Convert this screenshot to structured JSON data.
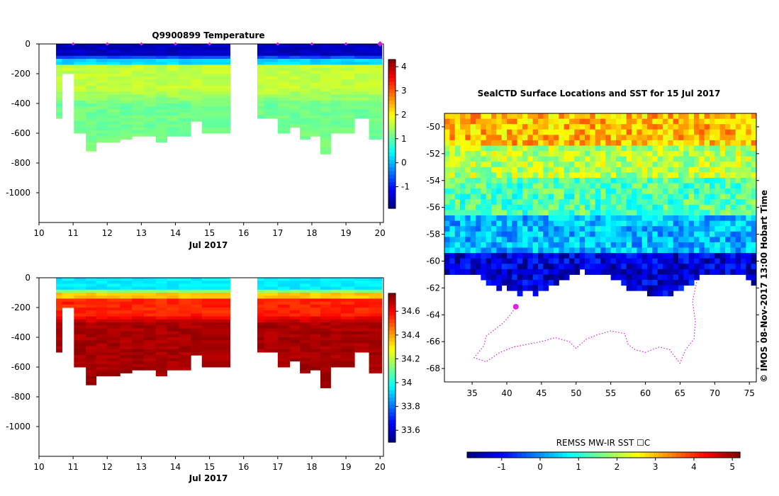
{
  "chart_data": [
    {
      "type": "heatmap",
      "title": "Q9900899  Temperature",
      "xlabel": "Jul 2017",
      "ylabel": "",
      "xlim": [
        10,
        20.1
      ],
      "ylim": [
        -1200,
        0
      ],
      "x_ticks": [
        "10",
        "11",
        "12",
        "13",
        "14",
        "15",
        "16",
        "17",
        "18",
        "19",
        "20"
      ],
      "y_ticks": [
        "0",
        "-200",
        "-400",
        "-600",
        "-800",
        "-1000"
      ],
      "colorbar": {
        "min": -1.9,
        "max": 4.3,
        "ticks": [
          "-1",
          "0",
          "1",
          "2",
          "3",
          "4"
        ]
      },
      "profile_markers_x": [
        11,
        12,
        13,
        14,
        15,
        17,
        18,
        19,
        20
      ],
      "layers": [
        {
          "top": 0,
          "bottom": -100,
          "value": -1.5
        },
        {
          "top": -100,
          "bottom": -140,
          "value": 0.2
        },
        {
          "top": -140,
          "bottom": -400,
          "value": 1.6
        },
        {
          "top": -400,
          "bottom": -750,
          "value": 1.1
        }
      ],
      "profiles": [
        {
          "x": 10.5,
          "max_depth": 500
        },
        {
          "x": 10.85,
          "max_depth": 200
        },
        {
          "x": 11.2,
          "max_depth": 600
        },
        {
          "x": 11.55,
          "max_depth": 720
        },
        {
          "x": 11.8,
          "max_depth": 650
        },
        {
          "x": 12.2,
          "max_depth": 650
        },
        {
          "x": 12.55,
          "max_depth": 630
        },
        {
          "x": 12.9,
          "max_depth": 620
        },
        {
          "x": 13.25,
          "max_depth": 620
        },
        {
          "x": 13.6,
          "max_depth": 650
        },
        {
          "x": 13.9,
          "max_depth": 620
        },
        {
          "x": 14.3,
          "max_depth": 620
        },
        {
          "x": 14.6,
          "max_depth": 510
        },
        {
          "x": 14.95,
          "max_depth": 600
        },
        {
          "x": 16.4,
          "max_depth": 500
        },
        {
          "x": 16.8,
          "max_depth": 500
        },
        {
          "x": 17.2,
          "max_depth": 590
        },
        {
          "x": 17.5,
          "max_depth": 550
        },
        {
          "x": 17.8,
          "max_depth": 640
        },
        {
          "x": 18.1,
          "max_depth": 620
        },
        {
          "x": 18.4,
          "max_depth": 740
        },
        {
          "x": 18.7,
          "max_depth": 590
        },
        {
          "x": 19.0,
          "max_depth": 600
        },
        {
          "x": 19.5,
          "max_depth": 500
        },
        {
          "x": 19.85,
          "max_depth": 630
        }
      ],
      "gap": [
        15.6,
        16.4
      ]
    },
    {
      "type": "heatmap",
      "title": "",
      "xlabel": "Jul 2017",
      "ylabel": "",
      "xlim": [
        10,
        20.1
      ],
      "ylim": [
        -1200,
        0
      ],
      "x_ticks": [
        "10",
        "11",
        "12",
        "13",
        "14",
        "15",
        "16",
        "17",
        "18",
        "19",
        "20"
      ],
      "y_ticks": [
        "0",
        "-200",
        "-400",
        "-600",
        "-800",
        "-1000"
      ],
      "colorbar": {
        "min": 33.5,
        "max": 34.75,
        "ticks": [
          "33.6",
          "33.8",
          "34",
          "34.2",
          "34.4",
          "34.6"
        ]
      },
      "layers": [
        {
          "top": 0,
          "bottom": -100,
          "value": 33.95
        },
        {
          "top": -100,
          "bottom": -140,
          "value": 34.35
        },
        {
          "top": -140,
          "bottom": -300,
          "value": 34.55
        },
        {
          "top": -300,
          "bottom": -750,
          "value": 34.7
        }
      ],
      "gap": [
        15.6,
        16.4
      ]
    },
    {
      "type": "heatmap",
      "title": "SealCTD Surface Locations and SST for 15 Jul 2017",
      "xlabel": "",
      "ylabel": "",
      "xlim": [
        31,
        76
      ],
      "ylim": [
        -69,
        -49
      ],
      "x_ticks": [
        "35",
        "40",
        "45",
        "50",
        "55",
        "60",
        "65",
        "70",
        "75"
      ],
      "y_ticks": [
        "-50",
        "-52",
        "-54",
        "-56",
        "-58",
        "-60",
        "-62",
        "-64",
        "-66",
        "-68"
      ],
      "colorbar": {
        "label": "REMSS MW-IR SST ☐C",
        "min": -1.9,
        "max": 5.2,
        "ticks": [
          "-1",
          "0",
          "1",
          "2",
          "3",
          "4",
          "5"
        ]
      },
      "sst_bands": [
        {
          "lat_top": -49,
          "lat_bottom": -51,
          "value": 3.0
        },
        {
          "lat_top": -51,
          "lat_bottom": -53.5,
          "value": 2.0
        },
        {
          "lat_top": -53.5,
          "lat_bottom": -56.5,
          "value": 1.3
        },
        {
          "lat_top": -56.5,
          "lat_bottom": -59,
          "value": 0.3
        },
        {
          "lat_top": -59,
          "lat_bottom": -62,
          "value": -1.3
        }
      ],
      "seal_track": [
        [
          41.2,
          -63.5
        ],
        [
          40.5,
          -64
        ],
        [
          39.5,
          -64.6
        ],
        [
          38.5,
          -65
        ],
        [
          37,
          -65.6
        ],
        [
          36.7,
          -66.3
        ],
        [
          35.3,
          -67.2
        ],
        [
          37,
          -67.5
        ],
        [
          39,
          -66.8
        ],
        [
          41,
          -66.4
        ],
        [
          43,
          -66.2
        ],
        [
          45,
          -66
        ],
        [
          47,
          -65.7
        ],
        [
          49,
          -66
        ],
        [
          50,
          -66.5
        ],
        [
          51.5,
          -65.8
        ],
        [
          53,
          -65.5
        ],
        [
          55,
          -65.2
        ],
        [
          57,
          -65.4
        ],
        [
          57.5,
          -66.2
        ],
        [
          58.5,
          -66.6
        ],
        [
          60,
          -66.8
        ],
        [
          62,
          -66.4
        ],
        [
          63.5,
          -66.6
        ],
        [
          64.5,
          -67.3
        ],
        [
          65,
          -67.6
        ],
        [
          65.8,
          -66.6
        ],
        [
          67,
          -65.8
        ],
        [
          67.2,
          -64.5
        ],
        [
          66.8,
          -63
        ],
        [
          67.2,
          -62
        ],
        [
          67.5,
          -61.3
        ]
      ],
      "current_location": [
        41.3,
        -63.4
      ],
      "side_label": "©  IMOS 08-Nov-2017 13:00 Hobart Time"
    }
  ]
}
